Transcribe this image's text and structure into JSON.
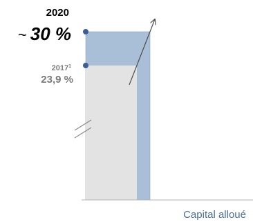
{
  "chart_data": {
    "type": "bar",
    "title": "",
    "xlabel": "Capital alloué",
    "ylabel": "",
    "axis_break": true,
    "series": [
      {
        "year": "2017",
        "footnote": "1",
        "label": "23,9 %",
        "value": 23.9,
        "color": "#e3e3e3"
      },
      {
        "year": "2020",
        "approx_prefix": "~",
        "label": "30 %",
        "value": 30,
        "color": "#a9bfd8"
      }
    ],
    "colors": {
      "marker": "#3d5e94",
      "increase_arrow": "#4d4d4d",
      "label_2017": "#7a7a7a",
      "label_2020": "#000000",
      "axis": "#b3b3b3",
      "xlabel": "#4a6e9f"
    }
  }
}
